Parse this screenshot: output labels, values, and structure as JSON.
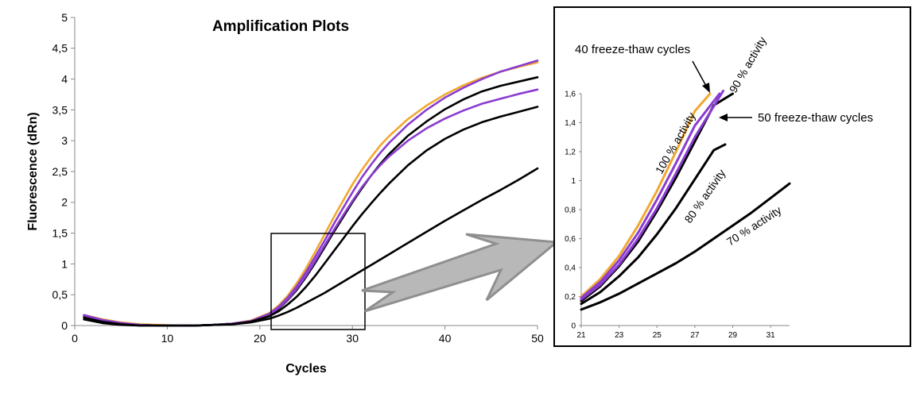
{
  "chart_data": [
    {
      "type": "line",
      "title": "Amplification Plots",
      "xlabel": "Cycles",
      "ylabel": "Fluorescence (dRn)",
      "xlim": [
        0,
        50
      ],
      "ylim": [
        0,
        5
      ],
      "xticks": [
        0,
        10,
        20,
        30,
        40,
        50
      ],
      "xtick_labels": [
        "0",
        "10",
        "20",
        "30",
        "40",
        "50"
      ],
      "yticks": [
        0,
        0.5,
        1,
        1.5,
        2,
        2.5,
        3,
        3.5,
        4,
        4.5,
        5
      ],
      "ytick_labels": [
        "0",
        "0,5",
        "1",
        "1,5",
        "2",
        "2,5",
        "3",
        "3,5",
        "4",
        "4,5",
        "5"
      ],
      "grid": false,
      "series": [
        {
          "color": "#f0a830",
          "x": [
            1,
            3,
            5,
            7,
            9,
            11,
            13,
            15,
            17,
            19,
            21,
            22,
            23,
            24,
            25,
            26,
            27,
            28,
            29,
            30,
            31,
            32,
            33,
            34,
            36,
            38,
            40,
            42,
            44,
            46,
            48,
            50
          ],
          "y": [
            0.17,
            0.1,
            0.05,
            0.02,
            0.01,
            0.0,
            0.0,
            0.01,
            0.03,
            0.08,
            0.2,
            0.32,
            0.48,
            0.69,
            0.93,
            1.2,
            1.48,
            1.76,
            2.03,
            2.29,
            2.52,
            2.73,
            2.92,
            3.08,
            3.35,
            3.57,
            3.75,
            3.9,
            4.02,
            4.12,
            4.2,
            4.27
          ]
        },
        {
          "color": "#8a3cd0",
          "x": [
            1,
            3,
            5,
            7,
            9,
            11,
            13,
            15,
            17,
            19,
            21,
            22,
            23,
            24,
            25,
            26,
            27,
            28,
            29,
            30,
            31,
            32,
            33,
            34,
            36,
            38,
            40,
            42,
            44,
            46,
            48,
            50
          ],
          "y": [
            0.17,
            0.09,
            0.04,
            0.01,
            0.0,
            0.0,
            0.0,
            0.01,
            0.03,
            0.07,
            0.19,
            0.3,
            0.45,
            0.64,
            0.87,
            1.12,
            1.38,
            1.65,
            1.91,
            2.16,
            2.4,
            2.61,
            2.8,
            2.97,
            3.26,
            3.5,
            3.7,
            3.86,
            4.0,
            4.12,
            4.21,
            4.3
          ]
        },
        {
          "color": "#000000",
          "x": [
            1,
            3,
            5,
            7,
            9,
            11,
            13,
            15,
            17,
            19,
            21,
            22,
            23,
            24,
            25,
            26,
            27,
            28,
            29,
            30,
            31,
            32,
            33,
            34,
            36,
            38,
            40,
            42,
            44,
            46,
            48,
            50
          ],
          "y": [
            0.15,
            0.08,
            0.03,
            0.01,
            0.0,
            0.0,
            0.0,
            0.01,
            0.03,
            0.07,
            0.17,
            0.27,
            0.41,
            0.58,
            0.79,
            1.02,
            1.27,
            1.52,
            1.76,
            2.0,
            2.22,
            2.43,
            2.62,
            2.79,
            3.08,
            3.31,
            3.51,
            3.67,
            3.8,
            3.89,
            3.96,
            4.03
          ]
        },
        {
          "color": "#8a3cd0",
          "x": [
            1,
            3,
            5,
            7,
            9,
            11,
            13,
            15,
            17,
            19,
            21,
            22,
            23,
            24,
            25,
            26,
            27,
            28,
            29,
            30,
            31,
            32,
            33,
            34,
            36,
            38,
            40,
            42,
            44,
            46,
            48,
            50
          ],
          "y": [
            0.16,
            0.09,
            0.04,
            0.01,
            0.0,
            0.0,
            0.0,
            0.01,
            0.03,
            0.07,
            0.18,
            0.28,
            0.42,
            0.6,
            0.81,
            1.05,
            1.3,
            1.55,
            1.79,
            2.02,
            2.24,
            2.43,
            2.6,
            2.75,
            3.0,
            3.2,
            3.36,
            3.49,
            3.6,
            3.68,
            3.76,
            3.83
          ]
        },
        {
          "color": "#000000",
          "x": [
            1,
            3,
            5,
            7,
            9,
            11,
            13,
            15,
            17,
            19,
            21,
            22,
            23,
            24,
            25,
            26,
            27,
            28,
            29,
            30,
            31,
            32,
            33,
            34,
            36,
            38,
            40,
            42,
            44,
            46,
            48,
            50
          ],
          "y": [
            0.13,
            0.06,
            0.02,
            0.0,
            0.0,
            0.0,
            0.0,
            0.01,
            0.02,
            0.06,
            0.15,
            0.23,
            0.34,
            0.47,
            0.63,
            0.81,
            1.01,
            1.21,
            1.41,
            1.61,
            1.8,
            1.98,
            2.15,
            2.31,
            2.6,
            2.84,
            3.03,
            3.18,
            3.3,
            3.39,
            3.47,
            3.55
          ]
        },
        {
          "color": "#000000",
          "x": [
            1,
            3,
            5,
            7,
            9,
            11,
            13,
            15,
            17,
            19,
            21,
            22,
            23,
            24,
            25,
            26,
            27,
            28,
            29,
            30,
            31,
            32,
            33,
            34,
            36,
            38,
            40,
            42,
            44,
            46,
            48,
            50
          ],
          "y": [
            0.1,
            0.04,
            0.01,
            0.0,
            0.0,
            0.0,
            0.0,
            0.01,
            0.02,
            0.05,
            0.11,
            0.16,
            0.22,
            0.29,
            0.37,
            0.45,
            0.53,
            0.62,
            0.71,
            0.8,
            0.89,
            0.98,
            1.07,
            1.16,
            1.34,
            1.52,
            1.7,
            1.87,
            2.04,
            2.2,
            2.37,
            2.55
          ]
        }
      ]
    },
    {
      "type": "line",
      "xlim": [
        21,
        32
      ],
      "ylim": [
        0,
        1.6
      ],
      "xticks": [
        21,
        23,
        25,
        27,
        29,
        31
      ],
      "xtick_labels": [
        "21",
        "23",
        "25",
        "27",
        "29",
        "31"
      ],
      "yticks": [
        0,
        0.2,
        0.4,
        0.6,
        0.8,
        1,
        1.2,
        1.4,
        1.6
      ],
      "ytick_labels": [
        "0",
        "0,2",
        "0,4",
        "0,6",
        "0,8",
        "1",
        "1,2",
        "1,4",
        "1,6"
      ],
      "grid": false,
      "series": [
        {
          "name": "100 % activity",
          "color": "#f0a830",
          "x": [
            21,
            22,
            23,
            24,
            25,
            26,
            27,
            27.8
          ],
          "y": [
            0.2,
            0.32,
            0.48,
            0.69,
            0.93,
            1.2,
            1.48,
            1.6
          ]
        },
        {
          "color": "#8a3cd0",
          "x": [
            21,
            22,
            23,
            24,
            25,
            26,
            27,
            28.3
          ],
          "y": [
            0.19,
            0.3,
            0.45,
            0.64,
            0.87,
            1.12,
            1.38,
            1.6
          ]
        },
        {
          "name": "90 % activity",
          "color": "#000000",
          "x": [
            21,
            22,
            23,
            24,
            25,
            26,
            27,
            28,
            29
          ],
          "y": [
            0.17,
            0.27,
            0.41,
            0.58,
            0.79,
            1.02,
            1.27,
            1.52,
            1.6
          ]
        },
        {
          "color": "#8a3cd0",
          "x": [
            21,
            22,
            23,
            24,
            25,
            26,
            27,
            28.5
          ],
          "y": [
            0.18,
            0.28,
            0.42,
            0.6,
            0.81,
            1.05,
            1.3,
            1.62
          ]
        },
        {
          "name": "80 % activity",
          "color": "#000000",
          "x": [
            21,
            22,
            23,
            24,
            25,
            26,
            27,
            28,
            28.6
          ],
          "y": [
            0.15,
            0.23,
            0.34,
            0.47,
            0.63,
            0.81,
            1.01,
            1.21,
            1.25
          ]
        },
        {
          "name": "70 % activity",
          "color": "#000000",
          "x": [
            21,
            22,
            23,
            24,
            25,
            26,
            27,
            28,
            29,
            30,
            31,
            32
          ],
          "y": [
            0.11,
            0.16,
            0.22,
            0.29,
            0.36,
            0.43,
            0.51,
            0.6,
            0.69,
            0.78,
            0.88,
            0.98
          ]
        }
      ],
      "annotations": {
        "freeze_thaw_40": "40 freeze-thaw cycles",
        "freeze_thaw_50": "50 freeze-thaw cycles",
        "activity_100": "100 % activity",
        "activity_90": "90 % activity",
        "activity_80": "80 % activity",
        "activity_70": "70 % activity"
      }
    }
  ]
}
